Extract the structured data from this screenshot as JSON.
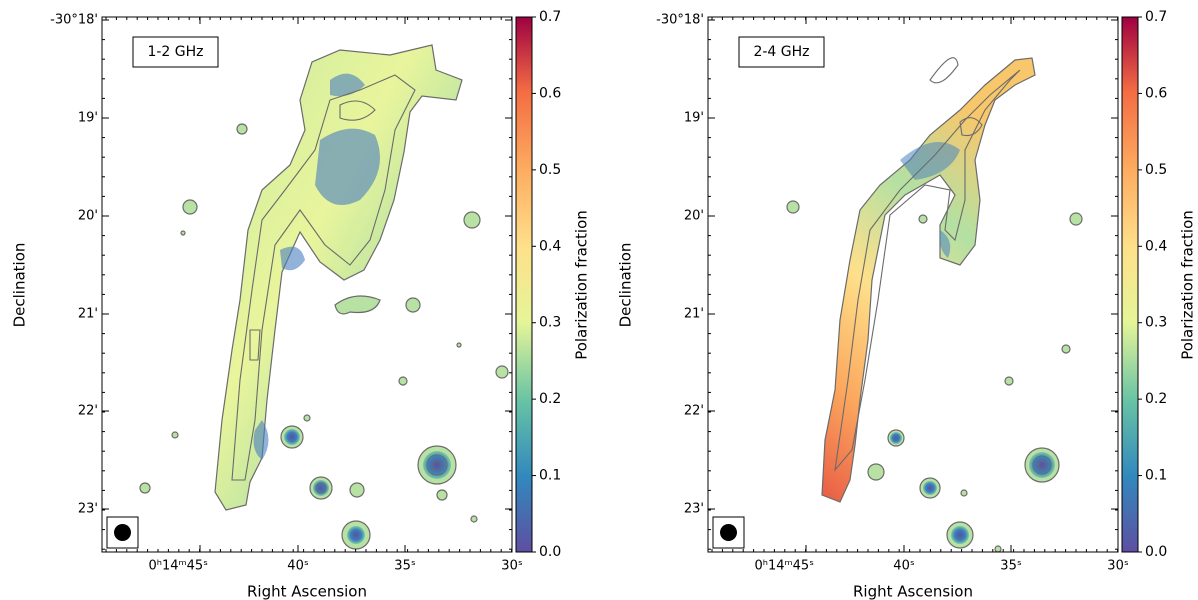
{
  "panels": [
    {
      "label": "1-2 GHz",
      "xlabel": "Right Ascension",
      "ylabel": "Declination",
      "xticks": [
        "0ʰ14ᵐ45ˢ",
        "40ˢ",
        "35ˢ",
        "30ˢ"
      ],
      "yticks": [
        "-30°18'",
        "19'",
        "20'",
        "21'",
        "22'",
        "23'"
      ],
      "colorbar": {
        "label": "Polarization fraction",
        "ticks": [
          {
            "value": 0,
            "label": "0.0"
          },
          {
            "value": 0.1,
            "label": "0.1"
          },
          {
            "value": 0.2,
            "label": "0.2"
          },
          {
            "value": 0.3,
            "label": "0.3"
          },
          {
            "value": 0.4,
            "label": "0.4"
          },
          {
            "value": 0.5,
            "label": "0.5"
          },
          {
            "value": 0.6,
            "label": "0.6"
          },
          {
            "value": 0.7,
            "label": "0.7"
          }
        ]
      }
    },
    {
      "label": "2-4 GHz",
      "xlabel": "Right Ascension",
      "ylabel": "Declination",
      "xticks": [
        "0ʰ14ᵐ45ˢ",
        "40ˢ",
        "35ˢ",
        "30ˢ"
      ],
      "yticks": [
        "-30°18'",
        "19'",
        "20'",
        "21'",
        "22'",
        "23'"
      ],
      "colorbar": {
        "label": "Polarization fraction",
        "ticks": [
          {
            "value": 0,
            "label": "0.0"
          },
          {
            "value": 0.1,
            "label": "0.1"
          },
          {
            "value": 0.2,
            "label": "0.2"
          },
          {
            "value": 0.3,
            "label": "0.3"
          },
          {
            "value": 0.4,
            "label": "0.4"
          },
          {
            "value": 0.5,
            "label": "0.5"
          },
          {
            "value": 0.6,
            "label": "0.6"
          },
          {
            "value": 0.7,
            "label": "0.7"
          }
        ]
      }
    }
  ]
}
